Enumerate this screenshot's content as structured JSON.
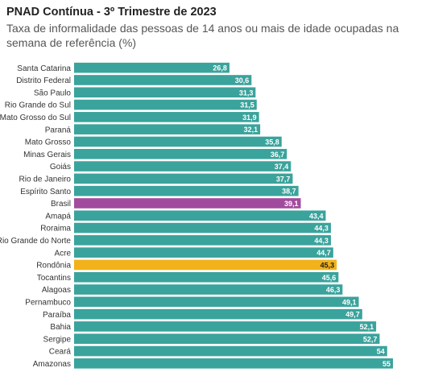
{
  "chart_data": {
    "type": "bar",
    "orientation": "horizontal",
    "title": "PNAD Contínua - 3º Trimestre de 2023",
    "subtitle": "Taxa de informalidade das pessoas de 14 anos ou mais de idade ocupadas na semana de referência (%)",
    "categories": [
      "Santa Catarina",
      "Distrito Federal",
      "São Paulo",
      "Rio Grande do Sul",
      "Mato Grosso do Sul",
      "Paraná",
      "Mato Grosso",
      "Minas Gerais",
      "Goiás",
      "Rio de Janeiro",
      "Espírito Santo",
      "Brasil",
      "Amapá",
      "Roraima",
      "Rio Grande do Norte",
      "Acre",
      "Rondônia",
      "Tocantins",
      "Alagoas",
      "Pernambuco",
      "Paraíba",
      "Bahia",
      "Sergipe",
      "Ceará",
      "Amazonas"
    ],
    "values": [
      26.8,
      30.6,
      31.3,
      31.5,
      31.9,
      32.1,
      35.8,
      36.7,
      37.4,
      37.7,
      38.7,
      39.1,
      43.4,
      44.3,
      44.3,
      44.7,
      45.3,
      45.6,
      46.3,
      49.1,
      49.7,
      52.1,
      52.7,
      54,
      55
    ],
    "value_labels": [
      "26,8",
      "30,6",
      "31,3",
      "31,5",
      "31,9",
      "32,1",
      "35,8",
      "36,7",
      "37,4",
      "37,7",
      "38,7",
      "39,1",
      "43,4",
      "44,3",
      "44,3",
      "44,7",
      "45,3",
      "45,6",
      "46,3",
      "49,1",
      "49,7",
      "52,1",
      "52,7",
      "54",
      "55"
    ],
    "colors": {
      "default": "#3aa39c",
      "highlights": {
        "Brasil": "#a24b9e",
        "Rondônia": "#f2b21b"
      },
      "label_default": "#ffffff",
      "label_highlight_dark": "#222222"
    },
    "xlim": [
      0,
      55
    ],
    "grid": false,
    "legend": "none"
  }
}
